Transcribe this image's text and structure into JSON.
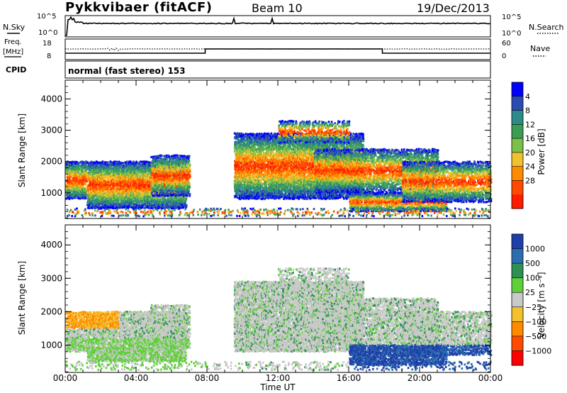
{
  "header": {
    "station": "Pykkvibaer (fitACF)",
    "beam": "Beam 10",
    "date": "19/Dec/2013"
  },
  "aux": {
    "nsky_label": "N.Sky",
    "nsearch_label": "N.Search",
    "top_tick_hi": "10^5",
    "top_tick_lo": "10^0",
    "freq_label_1": "Freq.",
    "freq_label_2": "[MHz]",
    "freq_ticks": [
      "18",
      "8"
    ],
    "nave_label": "Nave",
    "nave_ticks": [
      "60",
      "0"
    ],
    "cpid_label": "CPID",
    "cpid_text": "normal (fast stereo) 153"
  },
  "chart_data": [
    {
      "type": "heatmap",
      "name": "power",
      "ylabel": "Slant Range [km]",
      "xlabel": "Time UT",
      "x_ticks": [
        "00:00",
        "04:00",
        "08:00",
        "12:00",
        "16:00",
        "20:00",
        "00:00"
      ],
      "xlim": [
        0,
        24
      ],
      "ylim": [
        180,
        4600
      ],
      "y_ticks": [
        1000,
        2000,
        3000,
        4000
      ],
      "colorbar": {
        "label": "Power [dB]",
        "ticks": [
          "4",
          "8",
          "12",
          "16",
          "20",
          "24",
          "28"
        ],
        "colors": [
          "#0000ff",
          "#2b4bb0",
          "#2e8a8a",
          "#3c9c55",
          "#7cc04a",
          "#f2c12e",
          "#ff8a00",
          "#ff4a00",
          "#ff1a00"
        ]
      }
    },
    {
      "type": "heatmap",
      "name": "velocity",
      "ylabel": "Slant Range [km]",
      "xlabel": "Time UT",
      "x_ticks": [
        "00:00",
        "04:00",
        "08:00",
        "12:00",
        "16:00",
        "20:00",
        "00:00"
      ],
      "xlim": [
        0,
        24
      ],
      "ylim": [
        180,
        4600
      ],
      "y_ticks": [
        1000,
        2000,
        3000,
        4000
      ],
      "colorbar": {
        "label": "Velocity [m s⁻¹]",
        "ticks": [
          "1000",
          "500",
          "100",
          "25",
          "−25",
          "−100",
          "−500",
          "−1000"
        ],
        "colors": [
          "#1f3fa8",
          "#2c6db0",
          "#2f8f55",
          "#5fcf3a",
          "#c9c9c9",
          "#f2c12e",
          "#ff8a00",
          "#ff4a00",
          "#ff0000"
        ]
      }
    }
  ],
  "colors": {
    "frame": "#000000",
    "background": "#ffffff"
  }
}
